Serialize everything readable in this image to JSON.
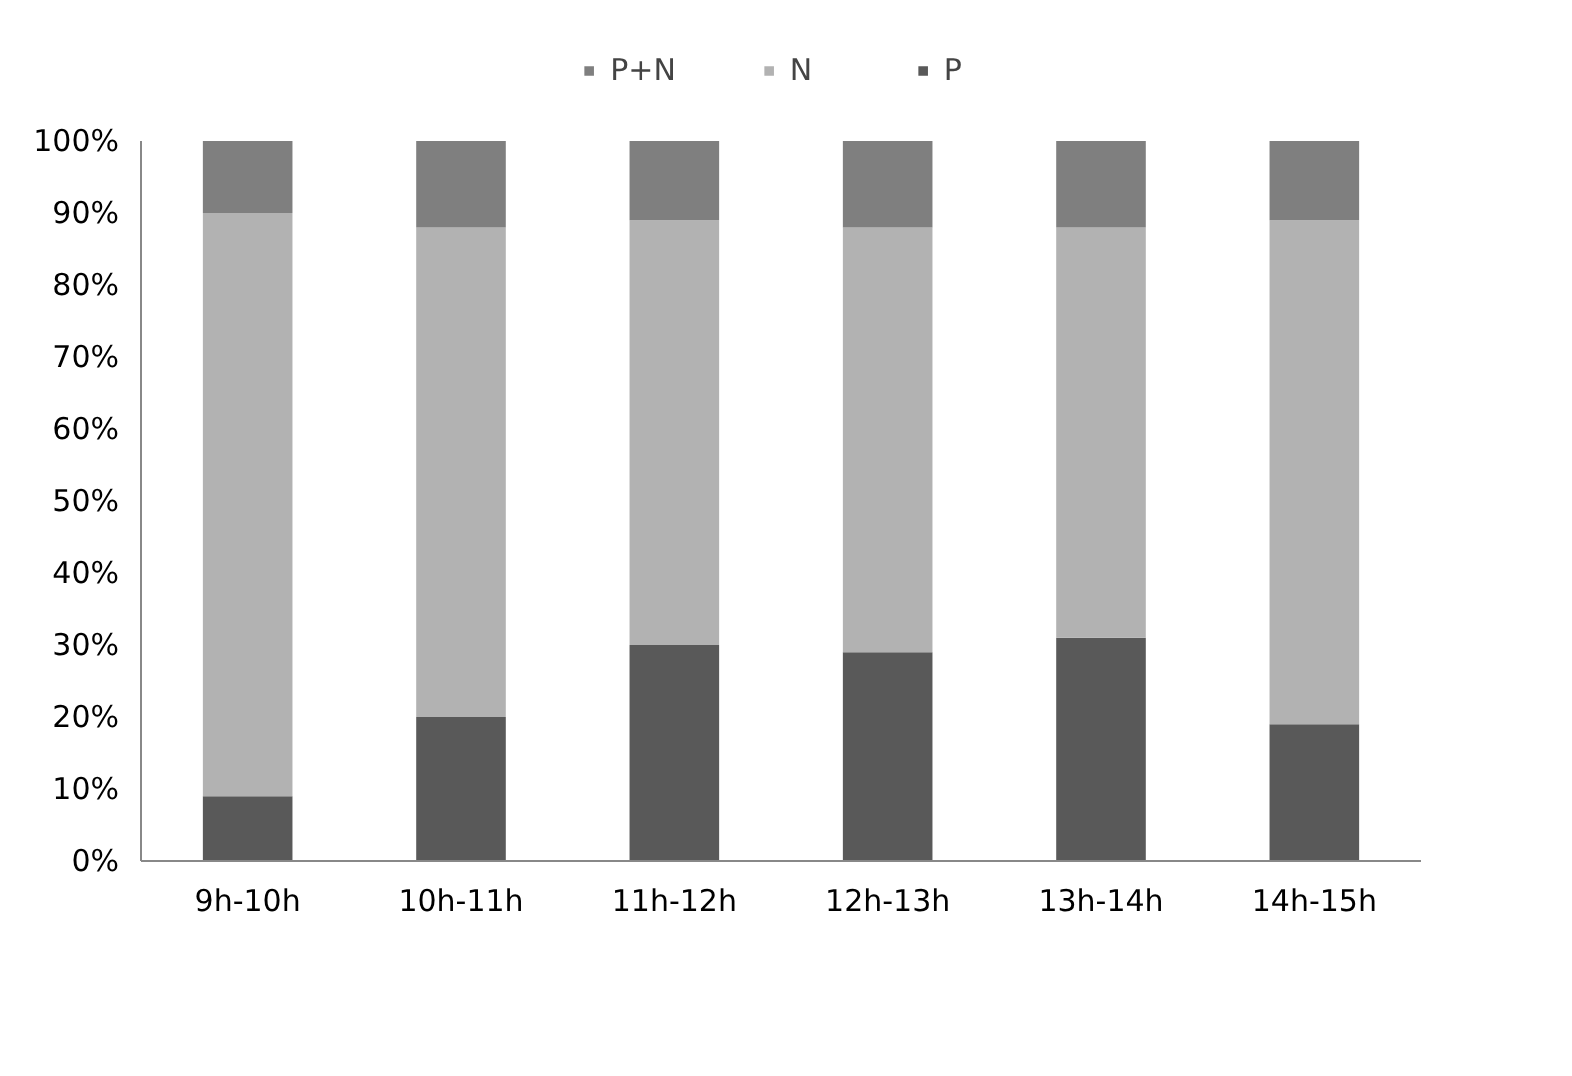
{
  "chart_data": {
    "type": "bar",
    "stacked": true,
    "categories": [
      "9h-10h",
      "10h-11h",
      "11h-12h",
      "12h-13h",
      "13h-14h",
      "14h-15h"
    ],
    "series": [
      {
        "name": "P",
        "color": "#595959",
        "values": [
          9,
          20,
          30,
          29,
          31,
          19
        ]
      },
      {
        "name": "N",
        "color": "#b2b2b2",
        "values": [
          81,
          68,
          59,
          59,
          57,
          70
        ]
      },
      {
        "name": "P+N",
        "color": "#7f7f7f",
        "values": [
          10,
          12,
          11,
          12,
          12,
          11
        ]
      }
    ],
    "ylim": [
      0,
      100
    ],
    "yticks": [
      {
        "value": 0,
        "label": "0%"
      },
      {
        "value": 10,
        "label": "10%"
      },
      {
        "value": 20,
        "label": "20%"
      },
      {
        "value": 30,
        "label": "30%"
      },
      {
        "value": 40,
        "label": "40%"
      },
      {
        "value": 50,
        "label": "50%"
      },
      {
        "value": 60,
        "label": "60%"
      },
      {
        "value": 70,
        "label": "70%"
      },
      {
        "value": 80,
        "label": "80%"
      },
      {
        "value": 90,
        "label": "90%"
      },
      {
        "value": 100,
        "label": "100%"
      }
    ],
    "grid": false,
    "legend": "top"
  }
}
